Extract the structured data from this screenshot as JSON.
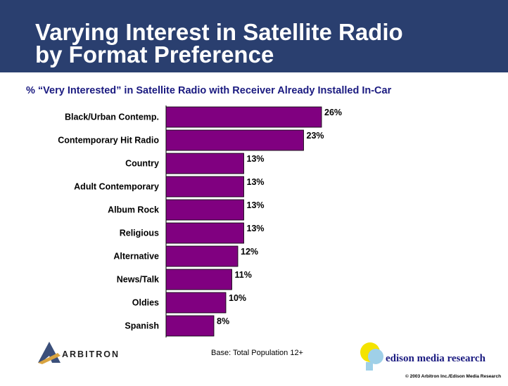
{
  "slide": {
    "title_line1": "Varying Interest in Satellite Radio",
    "title_line2": "by Format Preference",
    "subtitle": "% “Very Interested” in Satellite Radio with Receiver Already Installed In-Car",
    "base_note": "Base: Total Population 12+",
    "arbitron_logo_text": "ARBITRON",
    "edison_logo_text": "edison media research",
    "copyright": "© 2003 Arbitron Inc./Edison Media Research"
  },
  "colors": {
    "header_bg": "#2a3f6f",
    "bar_fill": "#800080",
    "subtitle_text": "#1a1a80"
  },
  "chart_data": {
    "type": "bar",
    "orientation": "horizontal",
    "title": "% “Very Interested” in Satellite Radio with Receiver Already Installed In-Car",
    "categories": [
      "Black/Urban Contemp.",
      "Contemporary Hit Radio",
      "Country",
      "Adult Contemporary",
      "Album Rock",
      "Religious",
      "Alternative",
      "News/Talk",
      "Oldies",
      "Spanish"
    ],
    "values": [
      26,
      23,
      13,
      13,
      13,
      13,
      12,
      11,
      10,
      8
    ],
    "value_labels": [
      "26%",
      "23%",
      "13%",
      "13%",
      "13%",
      "13%",
      "12%",
      "11%",
      "10%",
      "8%"
    ],
    "xlabel": "",
    "ylabel": "",
    "grid": false,
    "legend": "none"
  }
}
